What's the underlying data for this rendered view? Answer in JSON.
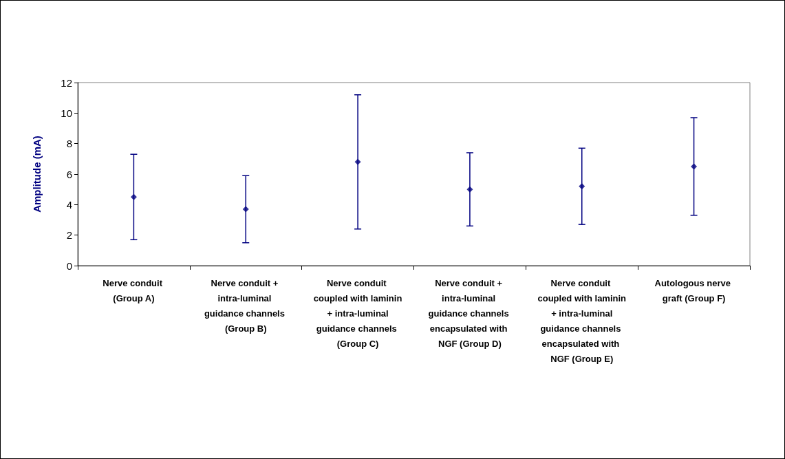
{
  "chart_data": {
    "type": "scatter",
    "ylabel": "Amplitude (mA)",
    "categories": [
      "Nerve conduit (Group A)",
      "Nerve conduit + intra-luminal guidance channels (Group B)",
      "Nerve conduit coupled with laminin + intra-luminal guidance channels (Group C)",
      "Nerve conduit + intra-luminal guidance channels encapsulated with NGF (Group D)",
      "Nerve conduit coupled with laminin + intra-luminal guidance channels encapsulated with NGF (Group E)",
      "Autologous nerve graft (Group F)"
    ],
    "values": [
      4.5,
      3.7,
      6.8,
      5.0,
      5.2,
      6.5
    ],
    "errors": [
      2.8,
      2.2,
      4.4,
      2.4,
      2.5,
      3.2
    ],
    "color": "#000080",
    "marker": "diamond",
    "grid": false,
    "ylim": [
      0,
      12
    ],
    "yticks": [
      0,
      2,
      4,
      6,
      8,
      10,
      12
    ]
  }
}
